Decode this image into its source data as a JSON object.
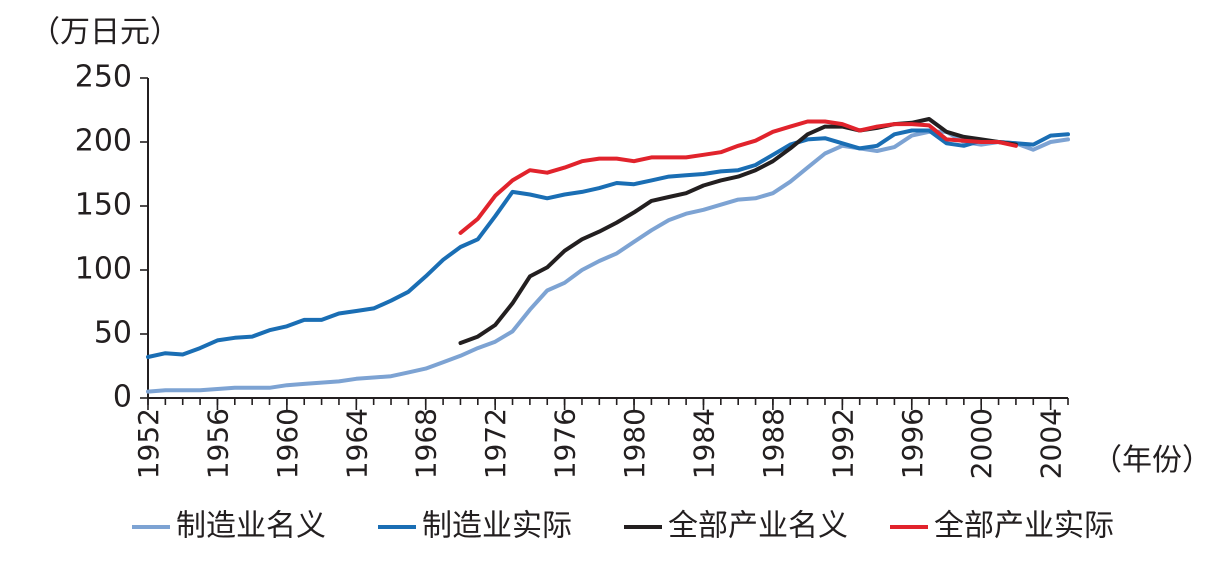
{
  "chart_data": {
    "type": "line",
    "y_unit_label": "（万日元）",
    "x_unit_label": "（年份）",
    "ylim": [
      0,
      250
    ],
    "xlim": [
      1952,
      2005
    ],
    "y_ticks": [
      0,
      50,
      100,
      150,
      200,
      250
    ],
    "y_tick_labels": [
      "0",
      "50",
      "100",
      "150",
      "200",
      "250"
    ],
    "x_ticks": [
      1952,
      1956,
      1960,
      1964,
      1968,
      1972,
      1976,
      1980,
      1984,
      1988,
      1992,
      1996,
      2000,
      2004
    ],
    "x_tick_labels": [
      "1952",
      "1956",
      "1960",
      "1964",
      "1968",
      "1972",
      "1976",
      "1980",
      "1984",
      "1988",
      "1992",
      "1996",
      "2000",
      "2004"
    ],
    "grid": false,
    "legend_position": "bottom",
    "series": [
      {
        "name": "制造业名义",
        "color": "#7da3d3",
        "x": [
          1952,
          1953,
          1954,
          1955,
          1956,
          1957,
          1958,
          1959,
          1960,
          1961,
          1962,
          1963,
          1964,
          1965,
          1966,
          1967,
          1968,
          1969,
          1970,
          1971,
          1972,
          1973,
          1974,
          1975,
          1976,
          1977,
          1978,
          1979,
          1980,
          1981,
          1982,
          1983,
          1984,
          1985,
          1986,
          1987,
          1988,
          1989,
          1990,
          1991,
          1992,
          1993,
          1994,
          1995,
          1996,
          1997,
          1998,
          1999,
          2000,
          2001,
          2002,
          2003,
          2004,
          2005
        ],
        "y": [
          5,
          6,
          6,
          6,
          7,
          8,
          8,
          8,
          10,
          11,
          12,
          13,
          15,
          16,
          17,
          20,
          23,
          28,
          33,
          39,
          44,
          52,
          69,
          84,
          90,
          100,
          107,
          113,
          122,
          131,
          139,
          144,
          147,
          151,
          155,
          156,
          160,
          169,
          180,
          191,
          197,
          195,
          193,
          196,
          205,
          208,
          208,
          200,
          198,
          200,
          199,
          194,
          200,
          202
        ]
      },
      {
        "name": "制造业实际",
        "color": "#1a6eb4",
        "x": [
          1952,
          1953,
          1954,
          1955,
          1956,
          1957,
          1958,
          1959,
          1960,
          1961,
          1962,
          1963,
          1964,
          1965,
          1966,
          1967,
          1968,
          1969,
          1970,
          1971,
          1972,
          1973,
          1974,
          1975,
          1976,
          1977,
          1978,
          1979,
          1980,
          1981,
          1982,
          1983,
          1984,
          1985,
          1986,
          1987,
          1988,
          1989,
          1990,
          1991,
          1992,
          1993,
          1994,
          1995,
          1996,
          1997,
          1998,
          1999,
          2000,
          2001,
          2002,
          2003,
          2004,
          2005
        ],
        "y": [
          32,
          35,
          34,
          39,
          45,
          47,
          48,
          53,
          56,
          61,
          61,
          66,
          68,
          70,
          76,
          83,
          95,
          108,
          118,
          124,
          142,
          161,
          159,
          156,
          159,
          161,
          164,
          168,
          167,
          170,
          173,
          174,
          175,
          177,
          178,
          182,
          190,
          198,
          202,
          203,
          199,
          195,
          197,
          206,
          209,
          209,
          199,
          197,
          201,
          200,
          199,
          198,
          205,
          206
        ]
      },
      {
        "name": "全部产业名义",
        "color": "#231f20",
        "x": [
          1970,
          1971,
          1972,
          1973,
          1974,
          1975,
          1976,
          1977,
          1978,
          1979,
          1980,
          1981,
          1982,
          1983,
          1984,
          1985,
          1986,
          1987,
          1988,
          1989,
          1990,
          1991,
          1992,
          1993,
          1994,
          1995,
          1996,
          1997,
          1998,
          1999,
          2000,
          2001,
          2002
        ],
        "y": [
          43,
          48,
          57,
          74,
          95,
          102,
          115,
          124,
          130,
          137,
          145,
          154,
          157,
          160,
          166,
          170,
          173,
          178,
          185,
          195,
          206,
          212,
          212,
          209,
          211,
          214,
          215,
          218,
          208,
          204,
          202,
          200,
          198
        ]
      },
      {
        "name": "全部产业实际",
        "color": "#e1232c",
        "x": [
          1970,
          1971,
          1972,
          1973,
          1974,
          1975,
          1976,
          1977,
          1978,
          1979,
          1980,
          1981,
          1982,
          1983,
          1984,
          1985,
          1986,
          1987,
          1988,
          1989,
          1990,
          1991,
          1992,
          1993,
          1994,
          1995,
          1996,
          1997,
          1998,
          1999,
          2000,
          2001,
          2002
        ],
        "y": [
          129,
          140,
          158,
          170,
          178,
          176,
          180,
          185,
          187,
          187,
          185,
          188,
          188,
          188,
          190,
          192,
          197,
          201,
          208,
          212,
          216,
          216,
          214,
          209,
          212,
          214,
          214,
          213,
          202,
          201,
          200,
          200,
          197
        ]
      }
    ]
  }
}
